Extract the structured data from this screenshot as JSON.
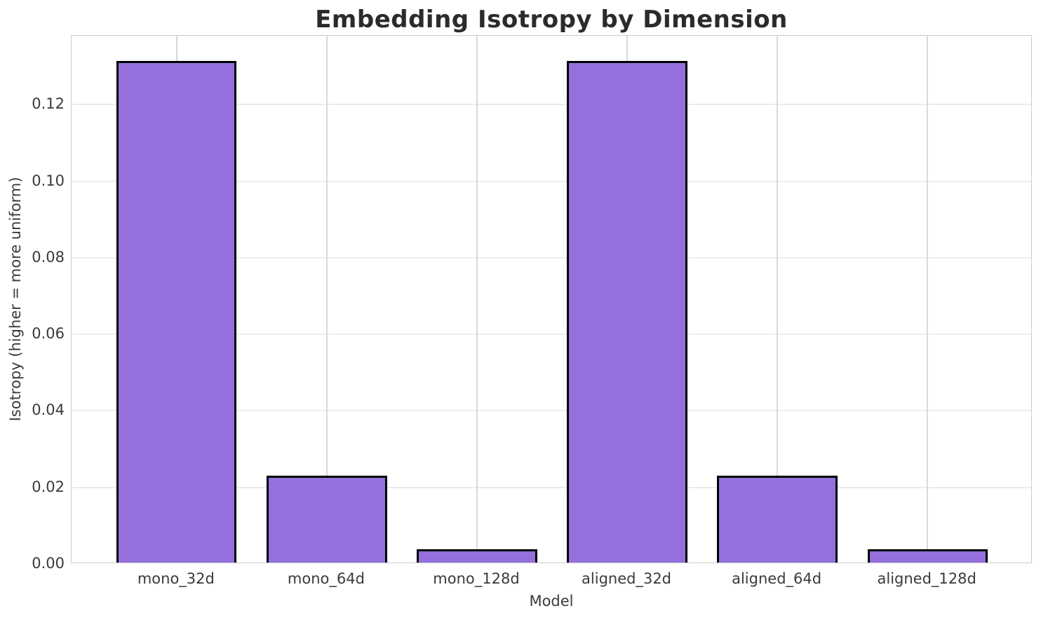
{
  "chart_data": {
    "type": "bar",
    "title": "Embedding Isotropy by Dimension",
    "xlabel": "Model",
    "ylabel": "Isotropy (higher = more uniform)",
    "categories": [
      "mono_32d",
      "mono_64d",
      "mono_128d",
      "aligned_32d",
      "aligned_64d",
      "aligned_128d"
    ],
    "values": [
      0.131,
      0.0227,
      0.0034,
      0.131,
      0.0227,
      0.0034
    ],
    "ylim": [
      0,
      0.138
    ],
    "yticks": [
      0.0,
      0.02,
      0.04,
      0.06,
      0.08,
      0.1,
      0.12
    ],
    "ytick_labels": [
      "0.00",
      "0.02",
      "0.04",
      "0.06",
      "0.08",
      "0.10",
      "0.12"
    ],
    "grid": true,
    "legend": "none",
    "bar_color": "#9370db",
    "bar_edge_color": "#000000",
    "bar_width_fraction": 0.8
  }
}
